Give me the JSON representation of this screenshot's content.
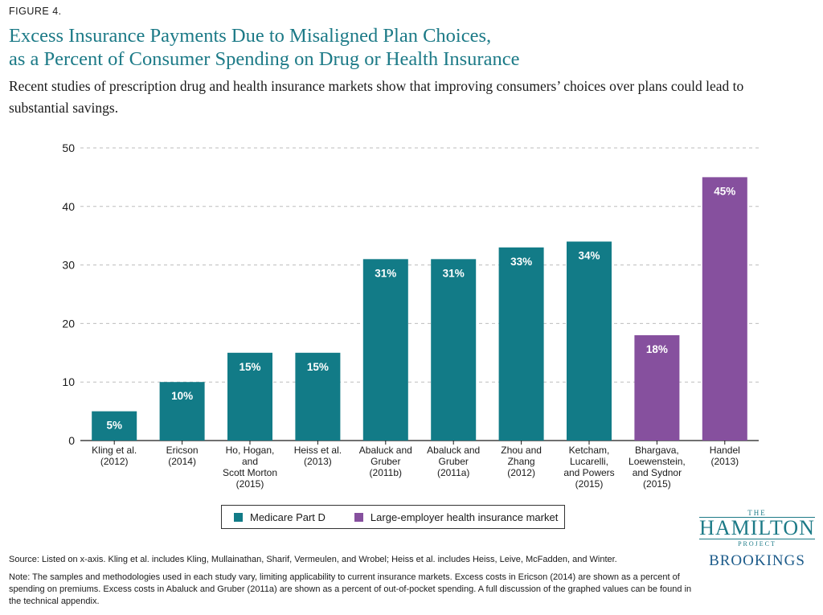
{
  "figure_label": "FIGURE 4.",
  "title_line1": "Excess Insurance Payments Due to Misaligned Plan Choices,",
  "title_line2": "as a Percent of Consumer Spending on Drug or Health Insurance",
  "subtitle": "Recent studies of prescription drug and health insurance markets show that improving consumers’ choices over plans could lead to substantial savings.",
  "colors": {
    "medicare": "#127b87",
    "employer": "#86509e",
    "title": "#1c7a87"
  },
  "chart_data": {
    "type": "bar",
    "title": "Excess Insurance Payments Due to Misaligned Plan Choices, as a Percent of Consumer Spending on Drug or Health Insurance",
    "xlabel": "",
    "ylabel": "",
    "ylim": [
      0,
      50
    ],
    "yticks": [
      "0",
      "10",
      "20",
      "30",
      "40",
      "50"
    ],
    "grid": true,
    "categories": [
      [
        "Kling et al.",
        "(2012)"
      ],
      [
        "Ericson",
        "(2014)"
      ],
      [
        "Ho,  Hogan,",
        "and",
        "Scott Morton",
        "(2015)"
      ],
      [
        "Heiss et al.",
        "(2013)"
      ],
      [
        "Abaluck and",
        "Gruber",
        "(2011b)"
      ],
      [
        "Abaluck and",
        "Gruber",
        "(2011a)"
      ],
      [
        "Zhou and",
        "Zhang",
        "(2012)"
      ],
      [
        "Ketcham,",
        "Lucarelli,",
        "and Powers",
        "(2015)"
      ],
      [
        "Bhargava,",
        "Loewenstein,",
        "and Sydnor",
        "(2015)"
      ],
      [
        "Handel",
        "(2013)"
      ]
    ],
    "values": [
      5,
      10,
      15,
      15,
      31,
      31,
      33,
      34,
      18,
      45
    ],
    "labels": [
      "5%",
      "10%",
      "15%",
      "15%",
      "31%",
      "31%",
      "33%",
      "34%",
      "18%",
      "45%"
    ],
    "series_of_bar": [
      "medicare",
      "medicare",
      "medicare",
      "medicare",
      "medicare",
      "medicare",
      "medicare",
      "medicare",
      "employer",
      "employer"
    ],
    "legend": [
      {
        "key": "medicare",
        "label": "Medicare Part D"
      },
      {
        "key": "employer",
        "label": "Large-employer health insurance market"
      }
    ],
    "legend_position": "bottom-center"
  },
  "logo": {
    "the": "THE",
    "hamilton": "HAMILTON",
    "project": "PROJECT",
    "brookings": "BROOKINGS"
  },
  "source": "Source: Listed on x-axis. Kling et al. includes Kling, Mullainathan, Sharif, Vermeulen, and Wrobel; Heiss et al. includes Heiss, Leive, McFadden, and Winter.",
  "note": "Note: The samples and methodologies used in each study vary, limiting applicability to current insurance markets. Excess costs in Ericson (2014) are shown as a percent of spending on premiums. Excess costs in Abaluck and Gruber (2011a) are shown as a percent of out-of-pocket spending. A full discussion of the graphed values can be found in the technical appendix."
}
